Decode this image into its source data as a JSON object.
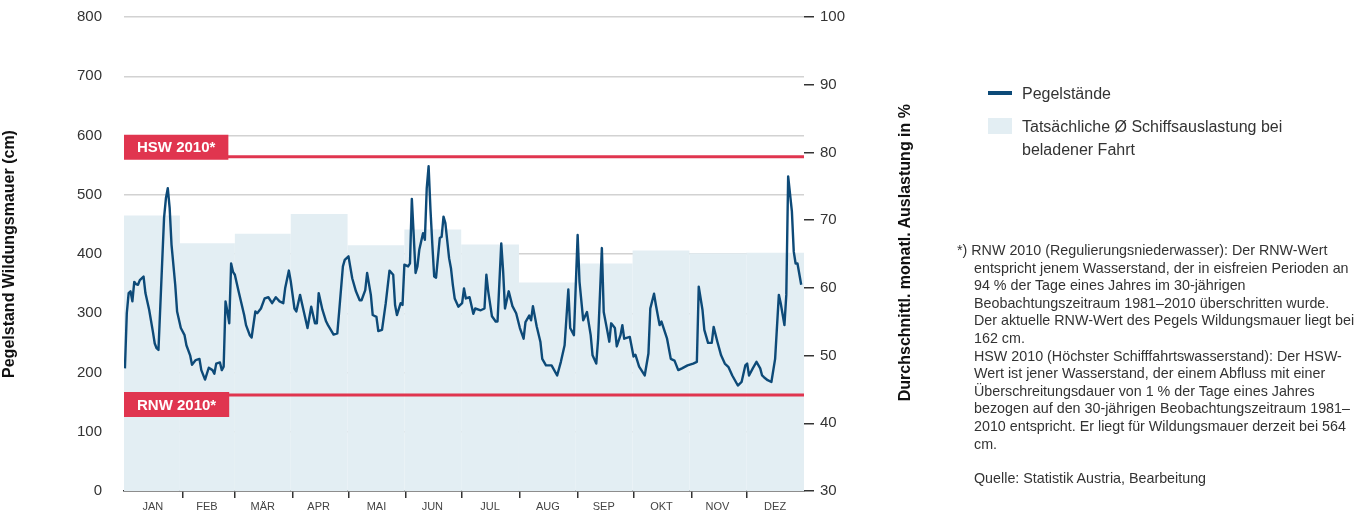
{
  "chart_data": {
    "type": "bar",
    "ylabel": "Pegelstand Wildungsmauer (cm)",
    "y2label": "Durchschnittl. monatl. Auslastung in %",
    "xlim": [
      "--01-01",
      "--12-31"
    ],
    "xticks": [
      {
        "value": "--01-16",
        "label": "JAN"
      },
      {
        "value": "--02-01",
        "label": null
      },
      {
        "value": "--02-14",
        "label": "FEB"
      },
      {
        "value": "--03-01",
        "label": null
      },
      {
        "value": "--03-16",
        "label": "MÄR"
      },
      {
        "value": "--04-01",
        "label": null
      },
      {
        "value": "--04-15",
        "label": "APR"
      },
      {
        "value": "--05-01",
        "label": null
      },
      {
        "value": "--05-16",
        "label": "MAI"
      },
      {
        "value": "--06-01",
        "label": null
      },
      {
        "value": "--06-15",
        "label": "JUN"
      },
      {
        "value": "--07-01",
        "label": null
      },
      {
        "value": "--07-16",
        "label": "JUL"
      },
      {
        "value": "--08-01",
        "label": null
      },
      {
        "value": "--08-16",
        "label": "AUG"
      },
      {
        "value": "--09-01",
        "label": null
      },
      {
        "value": "--09-15",
        "label": "SEP"
      },
      {
        "value": "--10-01",
        "label": null
      },
      {
        "value": "--10-16",
        "label": "OKT"
      },
      {
        "value": "--11-01",
        "label": null
      },
      {
        "value": "--11-15",
        "label": "NOV"
      },
      {
        "value": "--12-01",
        "label": null
      },
      {
        "value": "--12-16",
        "label": "DEZ"
      }
    ],
    "series": [
      {
        "name": "Tatsächliche Ø Schiffsauslastung bei beladener Fahrt",
        "axis": "y2",
        "color": "#e3eef3",
        "x": [
          "--01-16",
          "--02-14",
          "--03-16",
          "--04-15",
          "--05-16",
          "--06-15",
          "--07-16",
          "--08-16",
          "--09-15",
          "--10-16",
          "--11-15",
          "--12-16"
        ],
        "values": [
          70.7,
          66.6,
          68.0,
          70.9,
          66.3,
          68.6,
          66.4,
          60.8,
          63.6,
          65.5,
          65.1,
          65.2
        ]
      },
      {
        "name": "Pegelstände",
        "type": "line",
        "axis": "y",
        "color": "#0d4a78",
        "x": [
          "--01-01",
          "--01-02",
          "--01-03",
          "--01-04",
          "--01-05",
          "--01-06",
          "--01-07",
          "--01-08",
          "--01-09",
          "--01-10",
          "--01-11",
          "--01-12",
          "--01-14",
          "--01-16",
          "--01-17",
          "--01-18",
          "--01-19",
          "--01-21",
          "--01-22",
          "--01-23",
          "--01-24",
          "--01-25",
          "--01-26",
          "--01-28",
          "--01-29",
          "--01-31",
          "--02-02",
          "--02-03",
          "--02-05",
          "--02-06",
          "--02-08",
          "--02-10",
          "--02-11",
          "--02-13",
          "--02-15",
          "--02-17",
          "--02-18",
          "--02-19",
          "--02-21",
          "--02-22",
          "--02-23",
          "--02-24",
          "--02-25",
          "--02-26",
          "--02-27",
          "--02-28",
          "--03-01",
          "--03-03",
          "--03-06",
          "--03-07",
          "--03-09",
          "--03-10",
          "--03-12",
          "--03-13",
          "--03-15",
          "--03-17",
          "--03-19",
          "--03-21",
          "--03-23",
          "--03-25",
          "--03-27",
          "--03-28",
          "--03-30",
          "--03-31",
          "--04-02",
          "--04-03",
          "--04-05",
          "--04-07",
          "--04-09",
          "--04-11",
          "--04-13",
          "--04-14",
          "--04-15",
          "--04-17",
          "--04-19",
          "--04-20",
          "--04-23",
          "--04-25",
          "--04-26",
          "--04-28",
          "--04-29",
          "--05-01",
          "--05-03",
          "--05-05",
          "--05-07",
          "--05-08",
          "--05-10",
          "--05-11",
          "--05-13",
          "--05-14",
          "--05-16",
          "--05-17",
          "--05-19",
          "--05-21",
          "--05-23",
          "--05-25",
          "--05-26",
          "--05-27",
          "--05-29",
          "--05-30",
          "--05-31",
          "--06-02",
          "--06-03",
          "--06-04",
          "--06-05",
          "--06-06",
          "--06-07",
          "--06-08",
          "--06-10",
          "--06-11",
          "--06-12",
          "--06-13",
          "--06-14",
          "--06-15",
          "--06-16",
          "--06-17",
          "--06-19",
          "--06-20",
          "--06-21",
          "--06-22",
          "--06-24",
          "--06-25",
          "--06-26",
          "--06-27",
          "--06-29",
          "--07-01",
          "--07-02",
          "--07-03",
          "--07-05",
          "--07-07",
          "--07-08",
          "--07-11",
          "--07-13",
          "--07-14",
          "--07-15",
          "--07-17",
          "--07-19",
          "--07-20",
          "--07-22",
          "--07-23",
          "--07-24",
          "--07-26",
          "--07-28",
          "--07-30",
          "--08-01",
          "--08-03",
          "--08-04",
          "--08-06",
          "--08-07",
          "--08-08",
          "--08-10",
          "--08-12",
          "--08-13",
          "--08-15",
          "--08-18",
          "--08-21",
          "--08-23",
          "--08-25",
          "--08-27",
          "--08-28",
          "--08-30",
          "--09-01",
          "--09-02",
          "--09-04",
          "--09-06",
          "--09-08",
          "--09-09",
          "--09-11",
          "--09-12",
          "--09-14",
          "--09-15",
          "--09-17",
          "--09-18",
          "--09-19",
          "--09-21",
          "--09-22",
          "--09-24",
          "--09-25",
          "--09-26",
          "--09-29",
          "--10-01",
          "--10-02",
          "--10-04",
          "--10-07",
          "--10-09",
          "--10-10",
          "--10-12",
          "--10-13",
          "--10-15",
          "--10-16",
          "--10-19",
          "--10-21",
          "--10-23",
          "--10-25",
          "--10-27",
          "--10-30",
          "--11-02",
          "--11-04",
          "--11-05",
          "--11-07",
          "--11-08",
          "--11-10",
          "--11-12",
          "--11-13",
          "--11-15",
          "--11-17",
          "--11-19",
          "--11-21",
          "--11-23",
          "--11-26",
          "--11-28",
          "--11-30",
          "--12-01",
          "--12-02",
          "--12-04",
          "--12-06",
          "--12-08",
          "--12-09",
          "--12-10",
          "--12-12",
          "--12-14",
          "--12-16",
          "--12-18",
          "--12-19",
          "--12-21",
          "--12-22",
          "--12-23",
          "--12-25",
          "--12-26",
          "--12-27",
          "--12-28",
          "--12-30"
        ],
        "values": [
          207,
          300,
          334,
          337,
          320,
          353,
          349,
          348,
          356,
          359,
          362,
          334,
          306,
          269,
          249,
          241,
          238,
          387,
          461,
          494,
          511,
          478,
          416,
          348,
          303,
          275,
          263,
          246,
          229,
          213,
          221,
          223,
          204,
          188,
          208,
          204,
          198,
          215,
          217,
          204,
          210,
          320,
          303,
          283,
          384,
          370,
          365,
          337,
          297,
          280,
          263,
          259,
          303,
          300,
          308,
          325,
          327,
          317,
          327,
          320,
          317,
          342,
          372,
          354,
          308,
          303,
          331,
          303,
          275,
          311,
          283,
          283,
          334,
          306,
          286,
          280,
          264,
          266,
          303,
          379,
          390,
          396,
          359,
          337,
          322,
          322,
          339,
          368,
          331,
          297,
          294,
          270,
          272,
          317,
          372,
          365,
          314,
          297,
          317,
          314,
          382,
          379,
          384,
          493,
          432,
          368,
          379,
          407,
          435,
          424,
          511,
          548,
          475,
          416,
          362,
          360,
          427,
          429,
          463,
          452,
          393,
          376,
          348,
          325,
          311,
          317,
          342,
          325,
          327,
          299,
          308,
          305,
          308,
          365,
          337,
          295,
          286,
          286,
          418,
          371,
          308,
          337,
          312,
          300,
          275,
          257,
          285,
          296,
          288,
          312,
          278,
          252,
          223,
          212,
          212,
          195,
          218,
          246,
          340,
          275,
          263,
          432,
          353,
          288,
          302,
          263,
          229,
          215,
          257,
          410,
          302,
          269,
          252,
          283,
          275,
          244,
          263,
          280,
          257,
          260,
          227,
          230,
          210,
          195,
          232,
          308,
          333,
          314,
          280,
          286,
          257,
          223,
          220,
          204,
          207,
          212,
          215,
          218,
          345,
          306,
          272,
          250,
          250,
          277,
          252,
          229,
          215,
          209,
          195,
          178,
          184,
          212,
          215,
          195,
          207,
          218,
          207,
          195,
          192,
          187,
          184,
          223,
          331,
          317,
          280,
          331,
          531,
          472,
          404,
          384,
          384,
          348
        ]
      }
    ],
    "ylim": [
      0,
      800
    ],
    "yticks": [
      0,
      100,
      200,
      300,
      400,
      500,
      600,
      700,
      800
    ],
    "y2lim": [
      30,
      100
    ],
    "y2ticks": [
      30,
      40,
      50,
      60,
      70,
      80,
      90,
      100
    ],
    "grid": "y",
    "legend": "right",
    "ref_lines": [
      {
        "axis": "y",
        "value": 564,
        "label": "HSW 2010*",
        "color": "#e0354f"
      },
      {
        "axis": "y",
        "value": 162,
        "label": "RNW 2010*",
        "color": "#e0354f"
      }
    ],
    "annotations": [
      "*) RNW 2010 (Regulierungsniederwasser): Der RNW-Wert entspricht jenem Wasserstand, der in eisfreien Perioden an 94 % der Tage eines Jahres im 30-jährigen Beobachtungszeitraum 1981–2010 überschritten wurde. Der aktuelle RNW-Wert des Pegels Wildungsmauer liegt bei 162 cm.",
      "HSW 2010 (Höchster Schifffahrtswasserstand): Der HSW-Wert ist jener Wasserstand, der einem Abfluss mit einer Überschreitungsdauer von 1 % der Tage eines Jahres bezogen auf den 30-jährigen Beobachtungszeitraum 1981–2010 entspricht. Er liegt für Wildungsmauer derzeit bei 564 cm.",
      "Quelle: Statistik Austria, Bearbeitung"
    ]
  }
}
